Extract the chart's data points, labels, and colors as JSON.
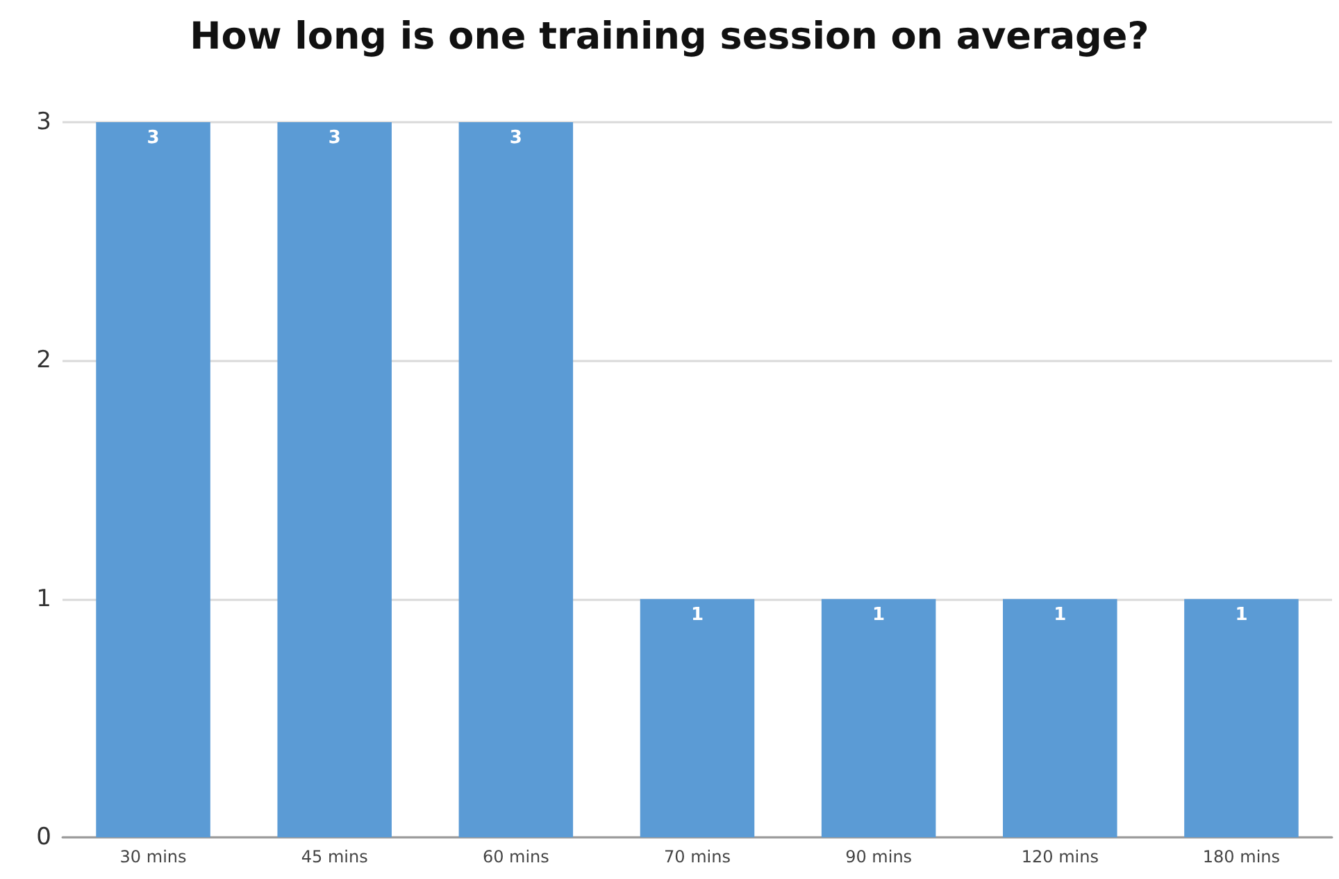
{
  "chart_data": {
    "type": "bar",
    "title": "How long is one training session on average?",
    "categories": [
      "30 mins",
      "45 mins",
      "60 mins",
      "70 mins",
      "90 mins",
      "120 mins",
      "180 mins"
    ],
    "values": [
      3,
      3,
      3,
      1,
      1,
      1,
      1
    ],
    "color": "#5b9bd5",
    "ylim": [
      0,
      3
    ],
    "yticks": [
      0,
      1,
      2,
      3
    ],
    "grid": "y",
    "data_labels": true
  }
}
